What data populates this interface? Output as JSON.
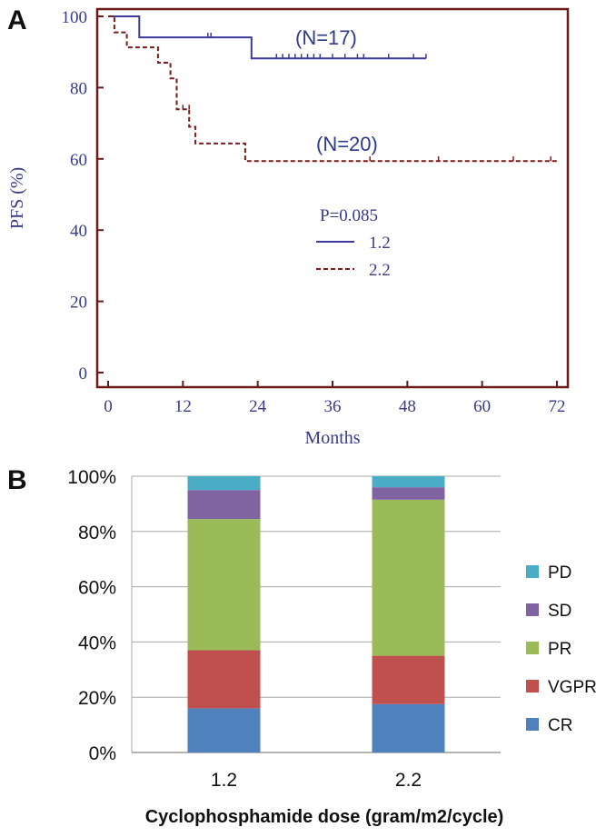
{
  "chart_data": [
    {
      "panel": "A",
      "type": "line",
      "step": true,
      "xlabel": "Months",
      "ylabel": "PFS (%)",
      "xlim": [
        0,
        72
      ],
      "ylim": [
        0,
        100
      ],
      "xticks": [
        "0",
        "12",
        "24",
        "36",
        "48",
        "60",
        "72"
      ],
      "yticks": [
        "0",
        "20",
        "40",
        "60",
        "80",
        "100"
      ],
      "annotations": [
        "(N=17)",
        "(N=20)"
      ],
      "p_value": "P=0.085",
      "legend_position": "center-right",
      "series": [
        {
          "name": "1.2",
          "color": "#3a3a9a",
          "dash": "solid",
          "x": [
            0,
            5,
            5,
            23,
            23,
            51
          ],
          "y": [
            100,
            100,
            94.1,
            94.1,
            88.2,
            88.2
          ],
          "censor_x": [
            16,
            16.5,
            27,
            28,
            29,
            30,
            31,
            32,
            33,
            34,
            36,
            38,
            40,
            41,
            45,
            49,
            51
          ],
          "censor_y": [
            94.1,
            94.1,
            88.2,
            88.2,
            88.2,
            88.2,
            88.2,
            88.2,
            88.2,
            88.2,
            88.2,
            88.2,
            88.2,
            88.2,
            88.2,
            88.2,
            88.2
          ]
        },
        {
          "name": "2.2",
          "color": "#7a1a1a",
          "dash": "dashed",
          "x": [
            0,
            1,
            1,
            3,
            3,
            8,
            8,
            10,
            10,
            11,
            11,
            12,
            12,
            13,
            13,
            14,
            14,
            22,
            22,
            72
          ],
          "y": [
            100,
            100,
            95.5,
            95.5,
            91.3,
            91.3,
            87.0,
            87.0,
            82.6,
            82.6,
            73.9,
            73.9,
            73.9,
            73.9,
            69.0,
            69.0,
            64.3,
            64.3,
            59.4,
            59.4
          ],
          "censor_x": [
            12,
            13,
            42,
            53,
            65,
            71
          ],
          "censor_y": [
            73.9,
            73.9,
            59.4,
            59.4,
            59.4,
            59.4
          ]
        }
      ]
    },
    {
      "panel": "B",
      "type": "bar",
      "stacked": true,
      "xlabel": "Cyclophosphamide dose (gram/m2/cycle)",
      "ylabel": "",
      "ylim": [
        0,
        100
      ],
      "yticks": [
        "0%",
        "20%",
        "40%",
        "60%",
        "80%",
        "100%"
      ],
      "categories": [
        "1.2",
        "2.2"
      ],
      "grid": true,
      "legend_position": "right",
      "series": [
        {
          "name": "CR",
          "color": "#4f81bd",
          "values": [
            16,
            17.5
          ]
        },
        {
          "name": "VGPR",
          "color": "#c0504d",
          "values": [
            21,
            17.5
          ]
        },
        {
          "name": "PR",
          "color": "#9bbb59",
          "values": [
            47.5,
            56.5
          ]
        },
        {
          "name": "SD",
          "color": "#8064a2",
          "values": [
            10.5,
            4.5
          ]
        },
        {
          "name": "PD",
          "color": "#4bacc6",
          "values": [
            5,
            4
          ]
        }
      ]
    }
  ]
}
